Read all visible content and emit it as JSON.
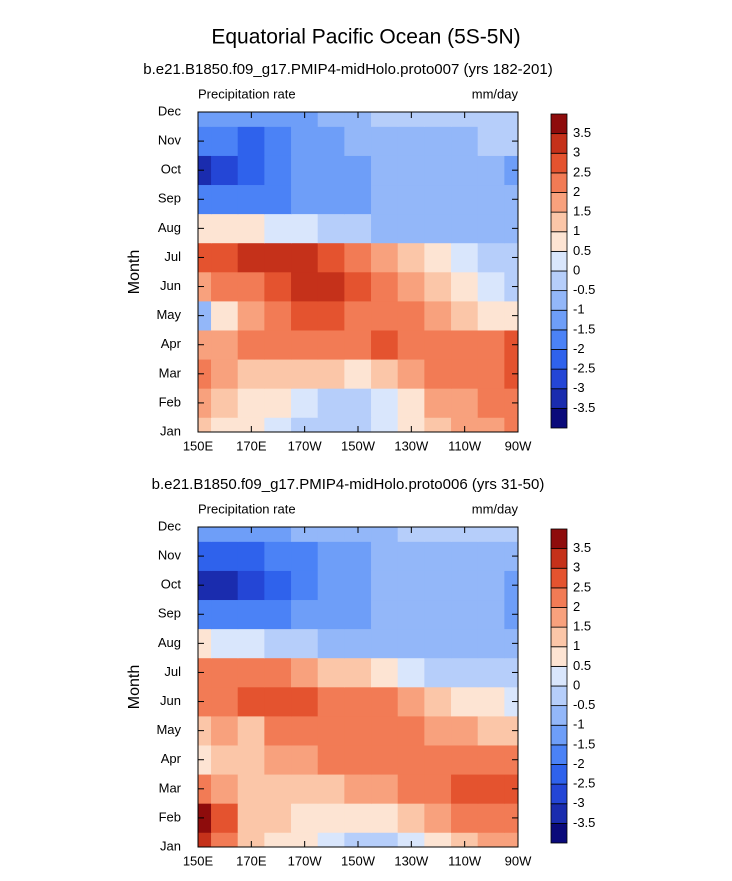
{
  "title": "Equatorial Pacific Ocean (5S-5N)",
  "chart_data": [
    {
      "type": "contour",
      "title": "b.e21.B1850.f09_g17.PMIP4-midHolo.proto007 (yrs 182-201)",
      "left_label": "Precipitation rate",
      "right_label": "mm/day",
      "ylabel": "Month",
      "categories": [
        "Jan",
        "Feb",
        "Mar",
        "Apr",
        "May",
        "Jun",
        "Jul",
        "Aug",
        "Sep",
        "Oct",
        "Nov",
        "Dec"
      ],
      "xlim": [
        150,
        270
      ],
      "xticks": [
        {
          "value": 150,
          "label": "150E"
        },
        {
          "value": 170,
          "label": "170E"
        },
        {
          "value": 190,
          "label": "170W"
        },
        {
          "value": 210,
          "label": "150W"
        },
        {
          "value": 230,
          "label": "130W"
        },
        {
          "value": 250,
          "label": "110W"
        },
        {
          "value": 270,
          "label": "90W"
        }
      ],
      "x": [
        150,
        160,
        170,
        180,
        190,
        200,
        210,
        220,
        230,
        240,
        250,
        260,
        270
      ],
      "z": [
        [
          1,
          0.5,
          0.5,
          0,
          -0.5,
          -0.5,
          -0.5,
          0,
          0.5,
          1,
          1.5,
          1.5,
          2
        ],
        [
          1.5,
          1,
          0.5,
          0.5,
          0,
          -0.5,
          -0.5,
          0,
          0.5,
          1.5,
          1.5,
          2,
          2
        ],
        [
          2,
          1.5,
          1,
          1,
          1,
          1,
          0.5,
          1,
          1.5,
          2,
          2,
          2,
          2.5
        ],
        [
          1.5,
          1.5,
          2,
          2,
          2,
          2,
          2,
          2.5,
          2,
          2,
          2,
          2,
          2.5
        ],
        [
          -1,
          0.5,
          1.5,
          2,
          2.5,
          2.5,
          2,
          2,
          2,
          1.5,
          1,
          0.5,
          0.5
        ],
        [
          1.5,
          2,
          2,
          2.5,
          3,
          3,
          2.5,
          2,
          1.5,
          1,
          0.5,
          0,
          -0.5
        ],
        [
          2.5,
          2.5,
          3,
          3,
          3,
          2.5,
          2,
          1.5,
          1,
          0.5,
          0,
          -0.5,
          -0.5
        ],
        [
          0.5,
          0.5,
          0.5,
          0,
          0,
          -0.5,
          -0.5,
          -1,
          -1,
          -1,
          -1,
          -1,
          -1
        ],
        [
          -2,
          -2,
          -2,
          -2,
          -1.5,
          -1.5,
          -1.5,
          -1,
          -1,
          -1,
          -1,
          -1,
          -1
        ],
        [
          -3.5,
          -3,
          -2.5,
          -2,
          -1.5,
          -1.5,
          -1.5,
          -1,
          -1,
          -1,
          -1,
          -1,
          -1.5
        ],
        [
          -2,
          -2,
          -2.5,
          -2,
          -1.5,
          -1.5,
          -1,
          -1,
          -1,
          -1,
          -1,
          -0.5,
          -0.5
        ],
        [
          -1.5,
          -1.5,
          -1.5,
          -1.5,
          -1.5,
          -1,
          -1,
          -0.5,
          -0.5,
          -0.5,
          -0.5,
          -0.5,
          -0.5
        ]
      ],
      "levels": [
        -3.5,
        -3,
        -2.5,
        -2,
        -1.5,
        -1,
        -0.5,
        0,
        0.5,
        1,
        1.5,
        2,
        2.5,
        3,
        3.5
      ],
      "colors": [
        "#0a0a7a",
        "#1a2cae",
        "#2446d6",
        "#2f62ec",
        "#4b82f6",
        "#6e9ef8",
        "#93b7f9",
        "#b6cefa",
        "#d9e6fc",
        "#fde4d3",
        "#fbc6a8",
        "#f8a17d",
        "#f27b55",
        "#e4532f",
        "#c5311a",
        "#8e0c0c"
      ]
    },
    {
      "type": "contour",
      "title": "b.e21.B1850.f09_g17.PMIP4-midHolo.proto006 (yrs 31-50)",
      "left_label": "Precipitation rate",
      "right_label": "mm/day",
      "ylabel": "Month",
      "categories": [
        "Jan",
        "Feb",
        "Mar",
        "Apr",
        "May",
        "Jun",
        "Jul",
        "Aug",
        "Sep",
        "Oct",
        "Nov",
        "Dec"
      ],
      "xlim": [
        150,
        270
      ],
      "xticks": [
        {
          "value": 150,
          "label": "150E"
        },
        {
          "value": 170,
          "label": "170E"
        },
        {
          "value": 190,
          "label": "170W"
        },
        {
          "value": 210,
          "label": "150W"
        },
        {
          "value": 230,
          "label": "130W"
        },
        {
          "value": 250,
          "label": "110W"
        },
        {
          "value": 270,
          "label": "90W"
        }
      ],
      "x": [
        150,
        160,
        170,
        180,
        190,
        200,
        210,
        220,
        230,
        240,
        250,
        260,
        270
      ],
      "z": [
        [
          3,
          2,
          1,
          0.5,
          0.5,
          0,
          -0.5,
          -0.5,
          0,
          0.5,
          1,
          1.5,
          1.5
        ],
        [
          3.5,
          2.5,
          1,
          1,
          0.5,
          0.5,
          0.5,
          0.5,
          1,
          1.5,
          2,
          2,
          2
        ],
        [
          2,
          1.5,
          1,
          1,
          1,
          1,
          1.5,
          1.5,
          2,
          2,
          2.5,
          2.5,
          2.5
        ],
        [
          0.5,
          1,
          1,
          1.5,
          1.5,
          2,
          2,
          2,
          2,
          2,
          2,
          2,
          2
        ],
        [
          1,
          1.5,
          1,
          2,
          2,
          2,
          2,
          2,
          2,
          1.5,
          1.5,
          1,
          1
        ],
        [
          2,
          2,
          2.5,
          2.5,
          2.5,
          2,
          2,
          2,
          1.5,
          1,
          0.5,
          0.5,
          0
        ],
        [
          2,
          2,
          2,
          2,
          1.5,
          1,
          1,
          0.5,
          0,
          -0.5,
          -0.5,
          -0.5,
          -0.5
        ],
        [
          0.5,
          0,
          0,
          -0.5,
          -0.5,
          -1,
          -1,
          -1,
          -1,
          -1,
          -1,
          -1,
          -1
        ],
        [
          -2,
          -2,
          -2,
          -2,
          -1.5,
          -1.5,
          -1.5,
          -1,
          -1,
          -1,
          -1,
          -1,
          -1.5
        ],
        [
          -3.5,
          -3.5,
          -3,
          -2.5,
          -2,
          -1.5,
          -1.5,
          -1,
          -1,
          -1,
          -1,
          -1,
          -1.5
        ],
        [
          -2.5,
          -2.5,
          -2.5,
          -2,
          -2,
          -1.5,
          -1.5,
          -1,
          -1,
          -1,
          -1,
          -1,
          -1
        ],
        [
          -1.5,
          -1.5,
          -1.5,
          -1.5,
          -1,
          -1,
          -1,
          -1,
          -0.5,
          -0.5,
          -0.5,
          -0.5,
          -0.5
        ]
      ],
      "levels": [
        -3.5,
        -3,
        -2.5,
        -2,
        -1.5,
        -1,
        -0.5,
        0,
        0.5,
        1,
        1.5,
        2,
        2.5,
        3,
        3.5
      ],
      "colors": [
        "#0a0a7a",
        "#1a2cae",
        "#2446d6",
        "#2f62ec",
        "#4b82f6",
        "#6e9ef8",
        "#93b7f9",
        "#b6cefa",
        "#d9e6fc",
        "#fde4d3",
        "#fbc6a8",
        "#f8a17d",
        "#f27b55",
        "#e4532f",
        "#c5311a",
        "#8e0c0c"
      ]
    }
  ]
}
